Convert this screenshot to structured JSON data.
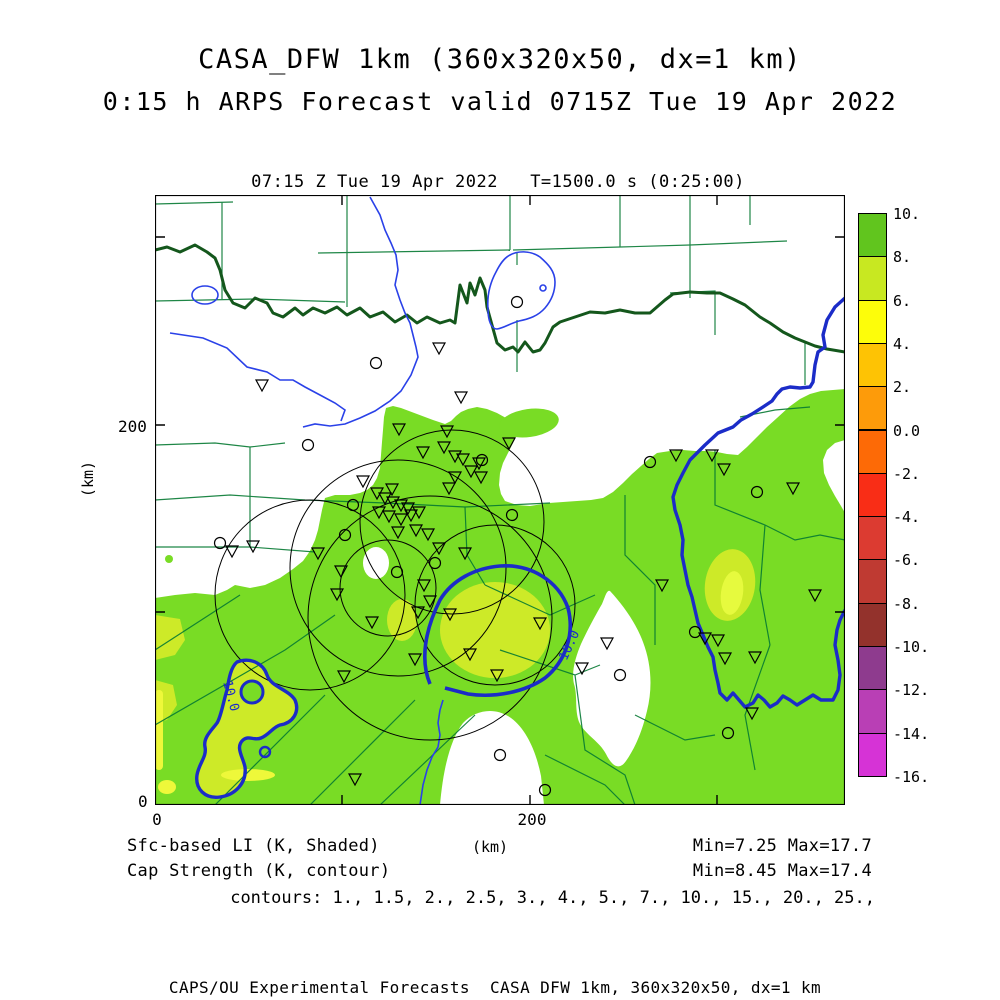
{
  "header": {
    "line1": "CASA_DFW 1km (360x320x50, dx=1 km)",
    "line2": "0:15 h ARPS Forecast valid 0715Z Tue 19 Apr 2022"
  },
  "plot": {
    "time_label": "07:15 Z Tue 19 Apr 2022   T=1500.0 s (0:25:00)"
  },
  "axes": {
    "x_label": "(km)",
    "y_label": "(km)",
    "x_tick_0": "0",
    "x_tick_200": "200",
    "y_tick_0": "0",
    "y_tick_200": "200"
  },
  "colorbar": {
    "tick_labels": [
      "10.",
      "8.",
      "6.",
      "4.",
      "2.",
      "0.0",
      "-2.",
      "-4.",
      "-6.",
      "-8.",
      "-10.",
      "-12.",
      "-14.",
      "-16."
    ],
    "band_colors": [
      "#61c51e",
      "#c8e821",
      "#fdfd0a",
      "#fec304",
      "#fd9b0a",
      "#fd6a06",
      "#f92d16",
      "#dc3b31",
      "#bf3a32",
      "#93322c",
      "#8e3b8e",
      "#b93fb5",
      "#d633d6"
    ]
  },
  "annotations": {
    "shaded_field": "Sfc-based LI (K, Shaded)",
    "shaded_minmax": "Min=7.25 Max=17.7",
    "contour_field": "Cap Strength (K, contour)",
    "contour_minmax": "Min=8.45 Max=17.4",
    "contour_levels": "contours: 1., 1.5, 2., 2.5, 3., 4., 5., 7., 10., 15., 20., 25.,"
  },
  "footer": {
    "text": "CAPS/OU Experimental Forecasts  CASA DFW 1km, 360x320x50, dx=1 km"
  },
  "map": {
    "contour_label_center": "10.0",
    "contour_label_sw": "10.0",
    "shade_green": "#79dc25",
    "shade_yellowgreen": "#cdea28",
    "shade_yellow": "#eef83a",
    "county_line_color": "#067a33",
    "state_line_color": "#14571c",
    "river_color": "#2a41e8",
    "contour_color": "#1b2cc8",
    "triangle_markers": [
      [
        244,
        234
      ],
      [
        292,
        236
      ],
      [
        268,
        257
      ],
      [
        289,
        252
      ],
      [
        300,
        261
      ],
      [
        308,
        264
      ],
      [
        316,
        276
      ],
      [
        324,
        268
      ],
      [
        326,
        282
      ],
      [
        354,
        248
      ],
      [
        300,
        282
      ],
      [
        294,
        293
      ],
      [
        208,
        286
      ],
      [
        237,
        294
      ],
      [
        222,
        298
      ],
      [
        230,
        303
      ],
      [
        238,
        307
      ],
      [
        246,
        310
      ],
      [
        253,
        313
      ],
      [
        224,
        317
      ],
      [
        234,
        321
      ],
      [
        246,
        324
      ],
      [
        256,
        320
      ],
      [
        264,
        317
      ],
      [
        273,
        339
      ],
      [
        261,
        335
      ],
      [
        243,
        337
      ],
      [
        284,
        353
      ],
      [
        310,
        358
      ],
      [
        269,
        390
      ],
      [
        275,
        406
      ],
      [
        263,
        417
      ],
      [
        295,
        419
      ],
      [
        217,
        427
      ],
      [
        186,
        376
      ],
      [
        182,
        399
      ],
      [
        163,
        358
      ],
      [
        315,
        459
      ],
      [
        260,
        464
      ],
      [
        342,
        480
      ],
      [
        189,
        481
      ],
      [
        98,
        351
      ],
      [
        77,
        356
      ],
      [
        107,
        190
      ],
      [
        306,
        202
      ],
      [
        284,
        153
      ],
      [
        521,
        260
      ],
      [
        557,
        260
      ],
      [
        569,
        274
      ],
      [
        638,
        293
      ],
      [
        452,
        448
      ],
      [
        427,
        473
      ],
      [
        550,
        443
      ],
      [
        563,
        445
      ],
      [
        570,
        463
      ],
      [
        600,
        462
      ],
      [
        597,
        518
      ],
      [
        507,
        390
      ],
      [
        660,
        400
      ],
      [
        200,
        584
      ],
      [
        385,
        428
      ]
    ],
    "circle_markers": [
      [
        221,
        168
      ],
      [
        495,
        267
      ],
      [
        65,
        348
      ],
      [
        153,
        250
      ],
      [
        198,
        310
      ],
      [
        190,
        340
      ],
      [
        280,
        368
      ],
      [
        242,
        377
      ],
      [
        327,
        265
      ],
      [
        357,
        320
      ],
      [
        540,
        437
      ],
      [
        465,
        480
      ],
      [
        573,
        538
      ],
      [
        345,
        560
      ],
      [
        390,
        595
      ],
      [
        602,
        297
      ],
      [
        362,
        107
      ]
    ]
  },
  "chart_data": {
    "type": "heatmap",
    "title": "CASA_DFW 1km (360x320x50, dx=1 km)",
    "subtitle": "0:15 h ARPS Forecast valid 0715Z Tue 19 Apr 2022",
    "valid_time": "07:15 Z Tue 19 Apr 2022",
    "model_time": "T=1500.0 s (0:25:00)",
    "xlabel": "(km)",
    "ylabel": "(km)",
    "x_ticks_labeled": [
      0,
      200
    ],
    "y_ticks_labeled": [
      0,
      200
    ],
    "grid_dimensions": "360x320x50, dx=1 km",
    "shaded_field": {
      "name": "Sfc-based LI",
      "units": "K",
      "min": 7.25,
      "max": 17.7
    },
    "contour_field": {
      "name": "Cap Strength",
      "units": "K",
      "min": 8.45,
      "max": 17.4,
      "levels": [
        1,
        1.5,
        2,
        2.5,
        3,
        4,
        5,
        7,
        10,
        15,
        20,
        25
      ],
      "visible_contour_labels": [
        "10.0",
        "10.0"
      ]
    },
    "colorbar_levels": [
      10,
      8,
      6,
      4,
      2,
      0.0,
      -2,
      -4,
      -6,
      -8,
      -10,
      -12,
      -14,
      -16
    ],
    "colorbar_colors": [
      "#61c51e",
      "#c8e821",
      "#fdfd0a",
      "#fec304",
      "#fd9b0a",
      "#fd6a06",
      "#f92d16",
      "#dc3b31",
      "#bf3a32",
      "#93322c",
      "#8e3b8e",
      "#b93fb5",
      "#d633d6"
    ],
    "legend_position": "right",
    "notes": "Shaded LI mostly 8-10 K (green) over southern half of domain with 6-8 K (yellow-green) pockets; two thick blue Cap Strength contours labeled 10.0; county boundaries, Red River state line, rivers, radar range rings and station triangles shown."
  }
}
